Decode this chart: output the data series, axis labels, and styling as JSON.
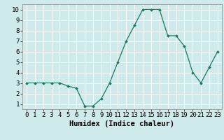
{
  "x": [
    0,
    1,
    2,
    3,
    4,
    5,
    6,
    7,
    8,
    9,
    10,
    11,
    12,
    13,
    14,
    15,
    16,
    17,
    18,
    19,
    20,
    21,
    22,
    23
  ],
  "y": [
    3.0,
    3.0,
    3.0,
    3.0,
    3.0,
    2.7,
    2.5,
    0.8,
    0.8,
    1.5,
    3.0,
    5.0,
    7.0,
    8.5,
    10.0,
    10.0,
    10.0,
    7.5,
    7.5,
    6.5,
    4.0,
    3.0,
    4.5,
    6.0
  ],
  "line_color": "#1a7a5e",
  "marker_color": "#1a7a5e",
  "bg_color": "#ceeaea",
  "grid_color": "#ffffff",
  "xlabel": "Humidex (Indice chaleur)",
  "xlim": [
    -0.5,
    23.5
  ],
  "ylim": [
    0.5,
    10.5
  ],
  "yticks": [
    1,
    2,
    3,
    4,
    5,
    6,
    7,
    8,
    9,
    10
  ],
  "xticks": [
    0,
    1,
    2,
    3,
    4,
    5,
    6,
    7,
    8,
    9,
    10,
    11,
    12,
    13,
    14,
    15,
    16,
    17,
    18,
    19,
    20,
    21,
    22,
    23
  ],
  "tick_fontsize": 6.5,
  "xlabel_fontsize": 7.5,
  "xlabel_fontweight": "bold"
}
